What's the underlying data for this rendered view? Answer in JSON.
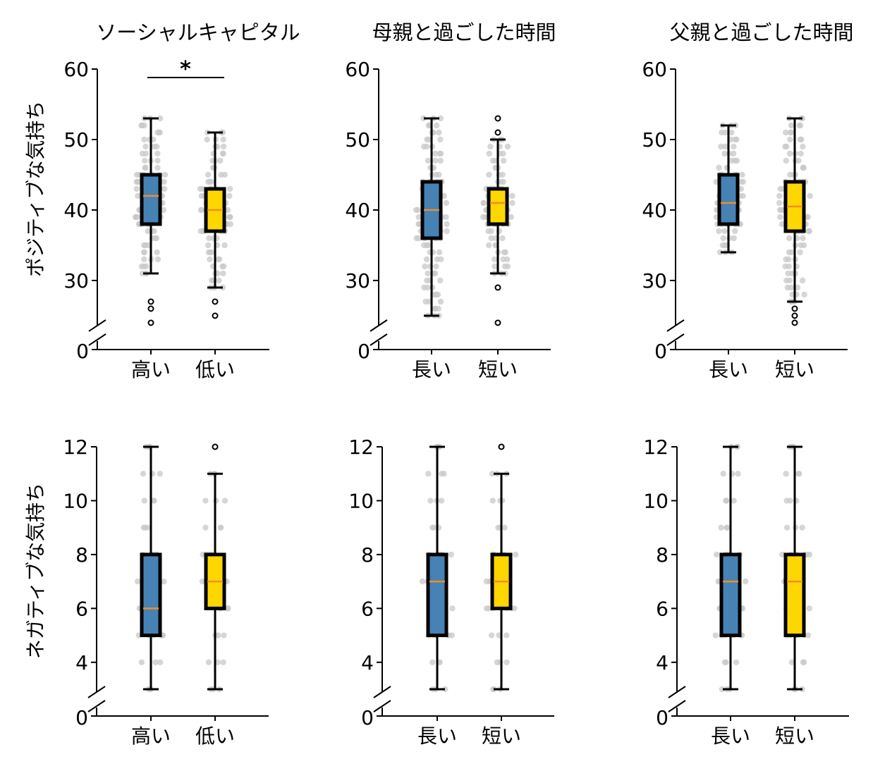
{
  "colors": {
    "high": "#4682B4",
    "low": "#FFD700",
    "median": "#F28C28",
    "jitter": "#C8C8C8",
    "box_edge": "#000000"
  },
  "chart_data": [
    {
      "type": "box",
      "column_title": "ソーシャルキャピタル",
      "ylabel": "ポジティブな気持ち",
      "categories": [
        "高い",
        "低い"
      ],
      "yticks": [
        60,
        50,
        40,
        30
      ],
      "ylim": [
        24,
        60
      ],
      "axis_break": true,
      "baseline_label": "0",
      "significance": {
        "marker": "*",
        "between": [
          "高い",
          "低い"
        ],
        "y": 58.8
      },
      "boxes": [
        {
          "category": "高い",
          "whisker_low": 31,
          "q1": 38,
          "median": 42,
          "q3": 45,
          "whisker_high": 53,
          "outliers": [
            27,
            26,
            24
          ]
        },
        {
          "category": "低い",
          "whisker_low": 29,
          "q1": 37,
          "median": 40,
          "q3": 43,
          "whisker_high": 51,
          "outliers": [
            27,
            25
          ]
        }
      ]
    },
    {
      "type": "box",
      "column_title": "母親と過ごした時間",
      "categories": [
        "長い",
        "短い"
      ],
      "yticks": [
        60,
        50,
        40,
        30
      ],
      "ylim": [
        24,
        60
      ],
      "axis_break": true,
      "baseline_label": "0",
      "boxes": [
        {
          "category": "長い",
          "whisker_low": 25,
          "q1": 36,
          "median": 40,
          "q3": 44,
          "whisker_high": 53,
          "outliers": []
        },
        {
          "category": "短い",
          "whisker_low": 31,
          "q1": 38,
          "median": 41,
          "q3": 43,
          "whisker_high": 50,
          "outliers": [
            53,
            51,
            29,
            24
          ]
        }
      ]
    },
    {
      "type": "box",
      "column_title": "父親と過ごした時間",
      "categories": [
        "長い",
        "短い"
      ],
      "yticks": [
        60,
        50,
        40,
        30
      ],
      "ylim": [
        24,
        60
      ],
      "axis_break": true,
      "baseline_label": "0",
      "boxes": [
        {
          "category": "長い",
          "whisker_low": 34,
          "q1": 38,
          "median": 41,
          "q3": 45,
          "whisker_high": 52,
          "outliers": []
        },
        {
          "category": "短い",
          "whisker_low": 27,
          "q1": 37,
          "median": 40.5,
          "q3": 44,
          "whisker_high": 53,
          "outliers": [
            26,
            25,
            24
          ]
        }
      ]
    },
    {
      "type": "box",
      "ylabel": "ネガティブな気持ち",
      "categories": [
        "高い",
        "低い"
      ],
      "yticks": [
        12,
        10,
        8,
        6,
        4
      ],
      "ylim": [
        3,
        12
      ],
      "axis_break": true,
      "baseline_label": "0",
      "boxes": [
        {
          "category": "高い",
          "whisker_low": 3,
          "q1": 5,
          "median": 6,
          "q3": 8,
          "whisker_high": 12,
          "outliers": []
        },
        {
          "category": "低い",
          "whisker_low": 3,
          "q1": 6,
          "median": 7,
          "q3": 8,
          "whisker_high": 11,
          "outliers": [
            12
          ]
        }
      ]
    },
    {
      "type": "box",
      "categories": [
        "長い",
        "短い"
      ],
      "yticks": [
        12,
        10,
        8,
        6,
        4
      ],
      "ylim": [
        3,
        12
      ],
      "axis_break": true,
      "baseline_label": "0",
      "boxes": [
        {
          "category": "長い",
          "whisker_low": 3,
          "q1": 5,
          "median": 7,
          "q3": 8,
          "whisker_high": 12,
          "outliers": []
        },
        {
          "category": "短い",
          "whisker_low": 3,
          "q1": 6,
          "median": 7,
          "q3": 8,
          "whisker_high": 11,
          "outliers": [
            12
          ]
        }
      ]
    },
    {
      "type": "box",
      "categories": [
        "長い",
        "短い"
      ],
      "yticks": [
        12,
        10,
        8,
        6,
        4
      ],
      "ylim": [
        3,
        12
      ],
      "axis_break": true,
      "baseline_label": "0",
      "boxes": [
        {
          "category": "長い",
          "whisker_low": 3,
          "q1": 5,
          "median": 7,
          "q3": 8,
          "whisker_high": 12,
          "outliers": []
        },
        {
          "category": "短い",
          "whisker_low": 3,
          "q1": 5,
          "median": 7,
          "q3": 8,
          "whisker_high": 12,
          "outliers": []
        }
      ]
    }
  ]
}
